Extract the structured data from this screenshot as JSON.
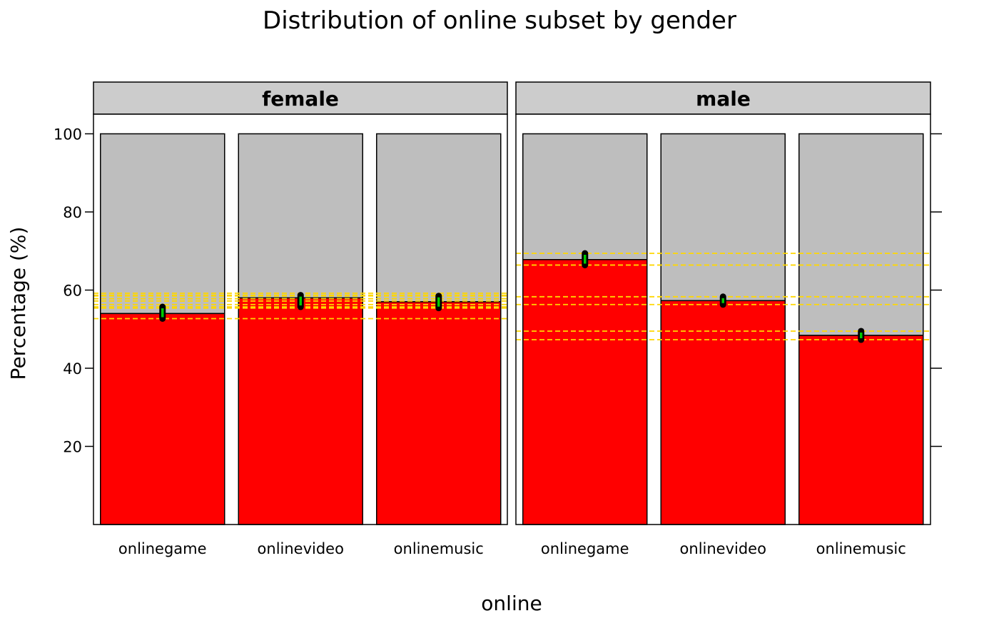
{
  "chart_data": {
    "type": "bar",
    "subtype": "stacked-percent, faceted",
    "title": "Distribution of online subset by gender",
    "xlabel": "online",
    "ylabel": "Percentage (%)",
    "ylim": [
      0,
      105
    ],
    "yticks": [
      20,
      40,
      60,
      80,
      100
    ],
    "categories": [
      "onlinegame",
      "onlinevideo",
      "onlinemusic"
    ],
    "colors": {
      "lower": "#ff0000",
      "upper": "#bebebe",
      "strip": "#cccccc",
      "ci_lines": "#ffd700",
      "marker": "#00cc00",
      "marker_outline": "#000000"
    },
    "panels": [
      {
        "name": "female",
        "values": [
          54,
          58,
          57
        ],
        "ci": [
          [
            52.7,
            55.7
          ],
          [
            55.7,
            58.7
          ],
          [
            55.4,
            58.5
          ]
        ],
        "ref_lines": [
          52.7,
          55.4,
          55.7,
          56.3,
          57.2,
          57.8,
          58.5,
          58.7,
          59.2
        ]
      },
      {
        "name": "male",
        "values": [
          67.8,
          57.3,
          48.4
        ],
        "ci": [
          [
            66.4,
            69.4
          ],
          [
            56.3,
            58.3
          ],
          [
            47.3,
            49.5
          ]
        ],
        "ref_lines": [
          47.3,
          49.5,
          56.3,
          58.3,
          66.4,
          69.4
        ]
      }
    ]
  }
}
